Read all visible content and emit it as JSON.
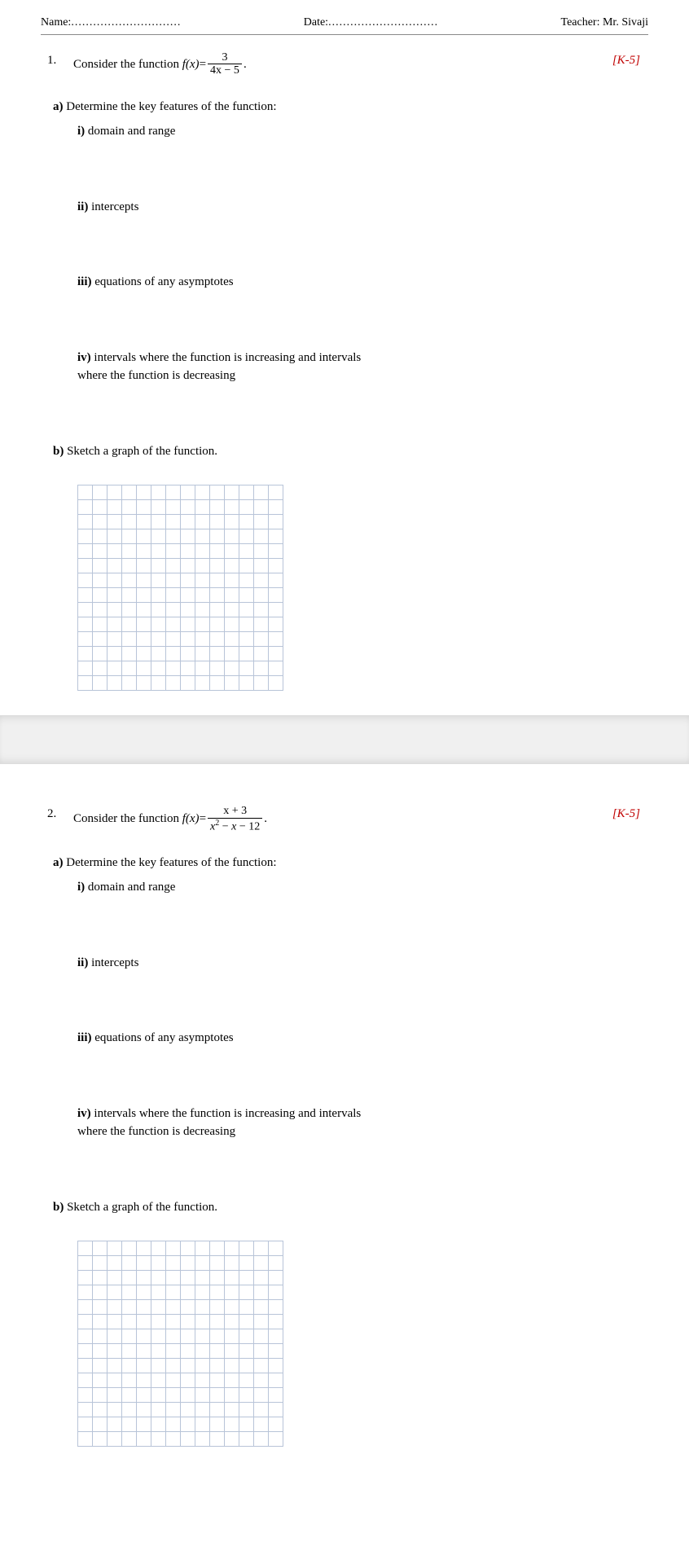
{
  "header": {
    "name_label": "Name:",
    "name_dots": "..............................",
    "date_label": "Date:",
    "date_dots": "..............................",
    "teacher_label": "Teacher: Mr. Sivaji"
  },
  "q1": {
    "number": "1.",
    "prompt_prefix": "Consider the function ",
    "fx": "f(x)",
    "equals": " = ",
    "frac_num": "3",
    "frac_den": "4x − 5",
    "period": ".",
    "marks": "[K-5]",
    "a_label": "a)",
    "a_text": " Determine the key features of the function:",
    "i": "i) domain and range",
    "ii": "ii) intercepts",
    "iii": "iii) equations of any asymptotes",
    "iv": "iv) intervals where the function is increasing and intervals where the function is decreasing",
    "b_label": "b)",
    "b_text": " Sketch a graph of the function.",
    "grid_rows": 14,
    "grid_cols": 14
  },
  "q2": {
    "number": "2.",
    "prompt_prefix": "Consider the function ",
    "fx": "f(x)",
    "equals": " = ",
    "frac_num": "x + 3",
    "frac_den_html": "x² − x − 12",
    "period": " .",
    "marks": "[K-5]",
    "a_label": "a)",
    "a_text": " Determine the key features of the function:",
    "i": "i) domain and range",
    "ii": "ii) intercepts",
    "iii": "iii) equations of any asymptotes",
    "iv": "iv) intervals where the function is increasing and intervals where the function is decreasing",
    "b_label": "b)",
    "b_text": " Sketch a graph of the function.",
    "grid_rows": 14,
    "grid_cols": 14
  }
}
